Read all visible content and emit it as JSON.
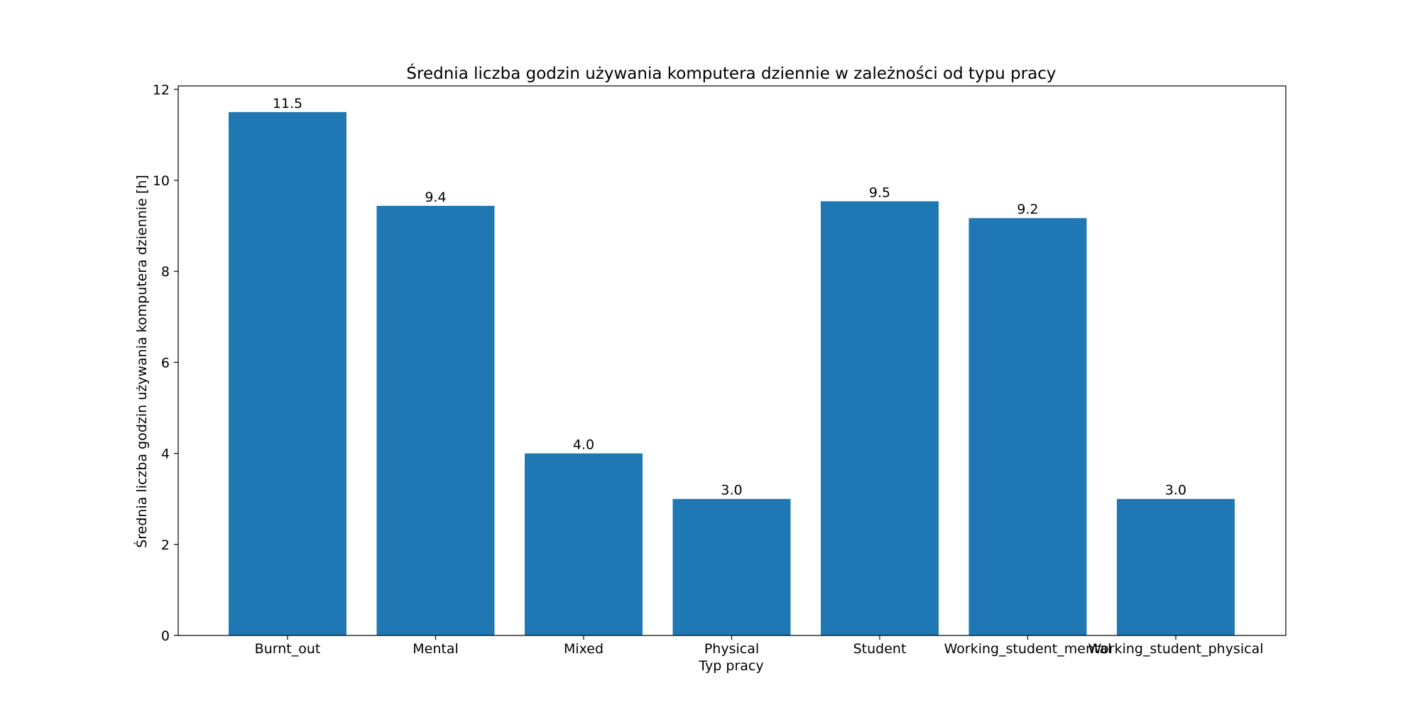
{
  "chart_data": {
    "type": "bar",
    "title": "Średnia liczba godzin używania komputera dziennie w zależności od typu pracy",
    "xlabel": "Typ pracy",
    "ylabel": "Średnia liczba godzin używania komputera dziennie [h]",
    "categories": [
      "Burnt_out",
      "Mental",
      "Mixed",
      "Physical",
      "Student",
      "Working_student_mental",
      "Working_student_physical"
    ],
    "values": [
      11.5,
      9.44,
      4.0,
      3.0,
      9.54,
      9.17,
      3.0
    ],
    "value_labels": [
      "11.5",
      "9.4",
      "4.0",
      "3.0",
      "9.5",
      "9.2",
      "3.0"
    ],
    "ylim": [
      0,
      12.075
    ],
    "yticks": [
      0,
      2,
      4,
      6,
      8,
      10,
      12
    ],
    "grid": false,
    "bar_color": "#1f77b4"
  }
}
